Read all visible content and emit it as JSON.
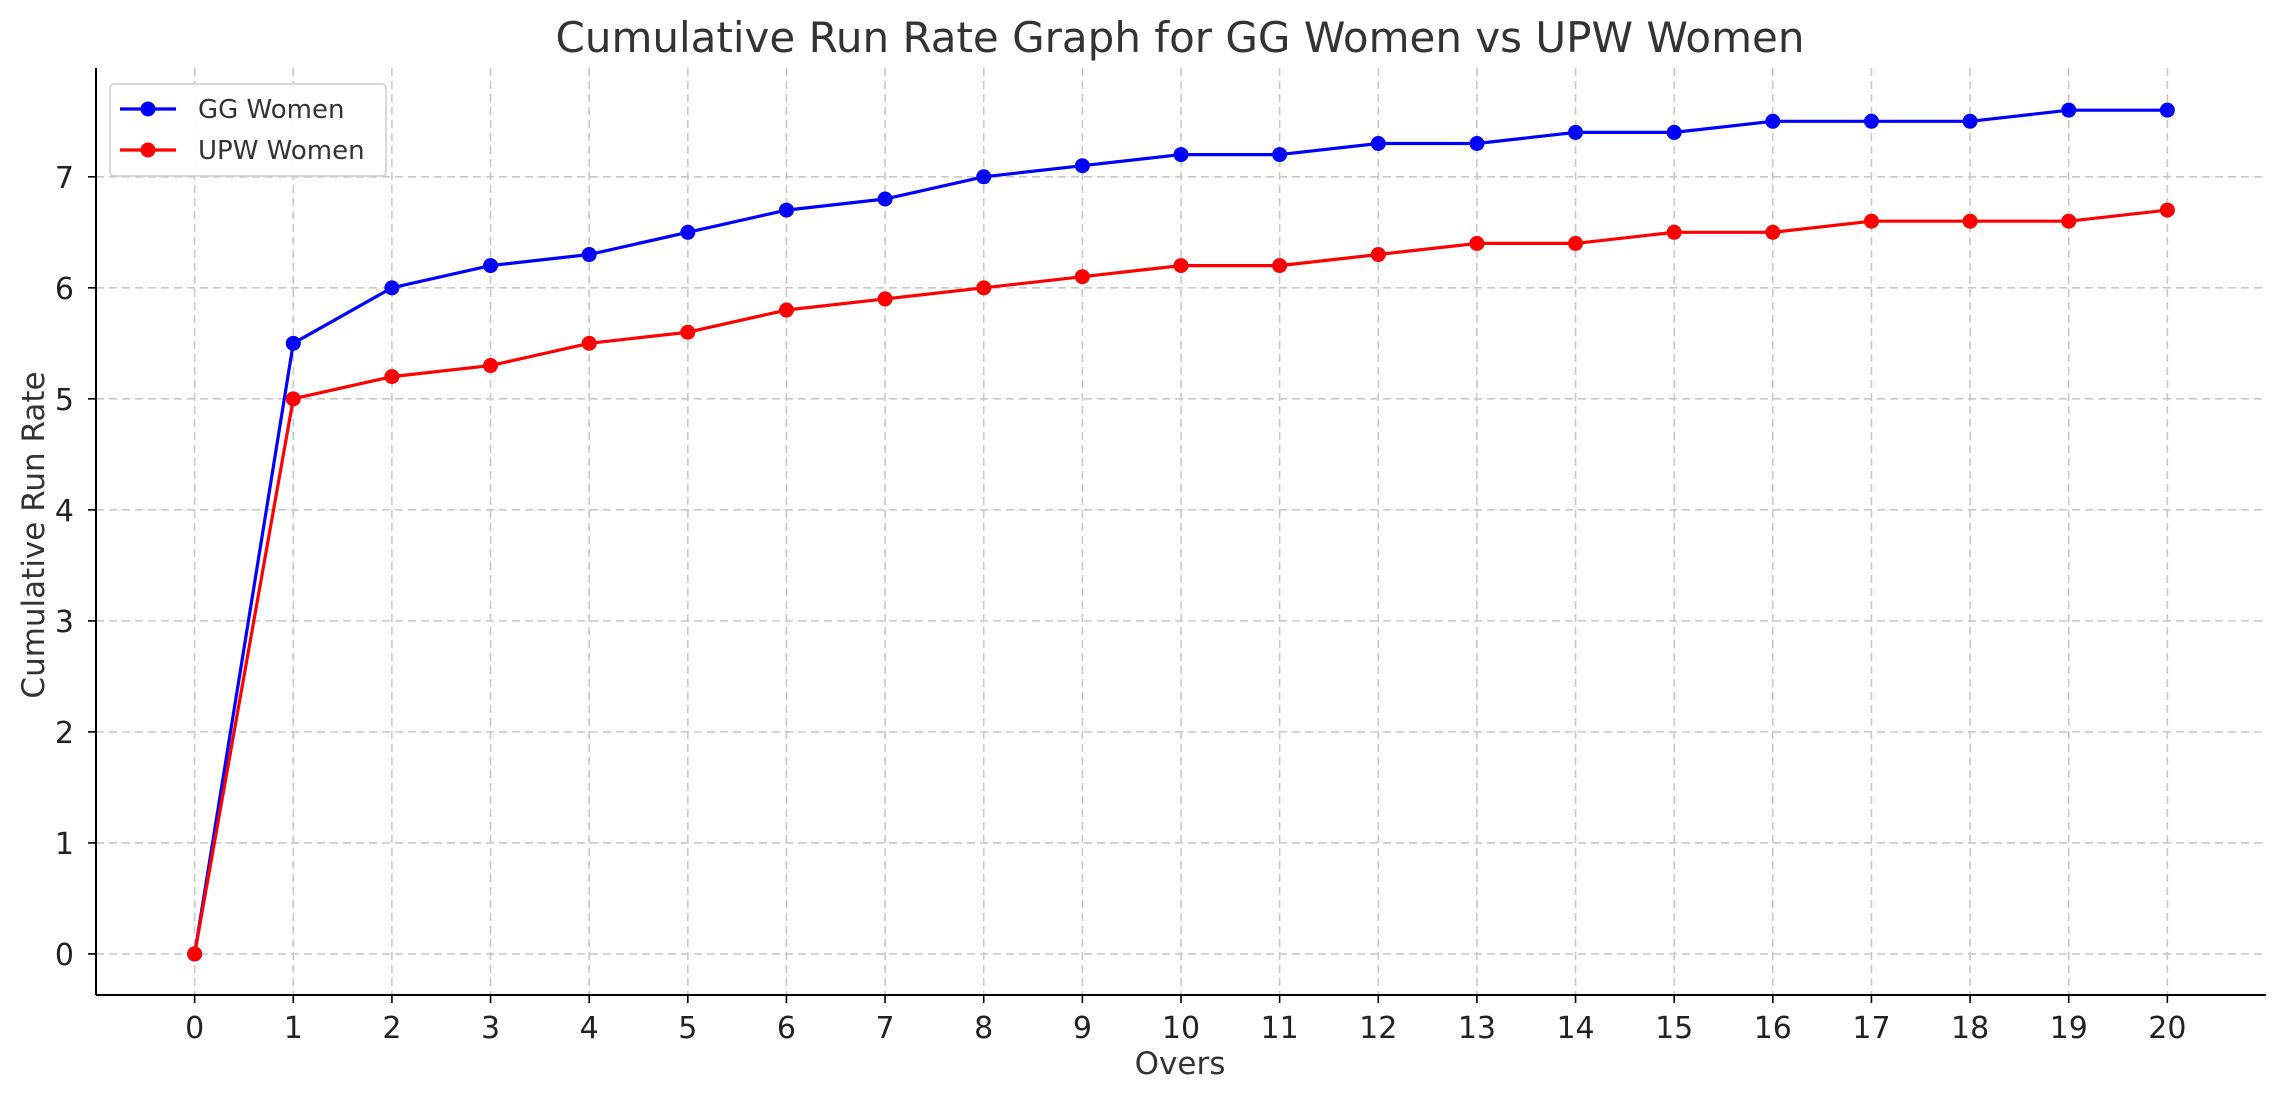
{
  "chart_data": {
    "type": "line",
    "title": "Cumulative Run Rate Graph for GG Women vs UPW Women",
    "xlabel": "Overs",
    "ylabel": "Cumulative Run Rate",
    "x": [
      0,
      1,
      2,
      3,
      4,
      5,
      6,
      7,
      8,
      9,
      10,
      11,
      12,
      13,
      14,
      15,
      16,
      17,
      18,
      19,
      20
    ],
    "xlim": [
      -1,
      21
    ],
    "ylim": [
      -0.37,
      7.98
    ],
    "xticks": [
      0,
      1,
      2,
      3,
      4,
      5,
      6,
      7,
      8,
      9,
      10,
      11,
      12,
      13,
      14,
      15,
      16,
      17,
      18,
      19,
      20
    ],
    "yticks": [
      0,
      1,
      2,
      3,
      4,
      5,
      6,
      7
    ],
    "grid": true,
    "legend_position": "top-left",
    "series": [
      {
        "name": "GG Women",
        "color": "#0000ff",
        "marker": "circle",
        "values": [
          0,
          5.5,
          6.0,
          6.2,
          6.3,
          6.5,
          6.7,
          6.8,
          7.0,
          7.1,
          7.2,
          7.2,
          7.3,
          7.3,
          7.4,
          7.4,
          7.5,
          7.5,
          7.5,
          7.6,
          7.6
        ]
      },
      {
        "name": "UPW Women",
        "color": "#ff0000",
        "marker": "circle",
        "values": [
          0,
          5.0,
          5.2,
          5.3,
          5.5,
          5.6,
          5.8,
          5.9,
          6.0,
          6.1,
          6.2,
          6.2,
          6.3,
          6.4,
          6.4,
          6.5,
          6.5,
          6.6,
          6.6,
          6.6,
          6.7
        ]
      }
    ]
  }
}
